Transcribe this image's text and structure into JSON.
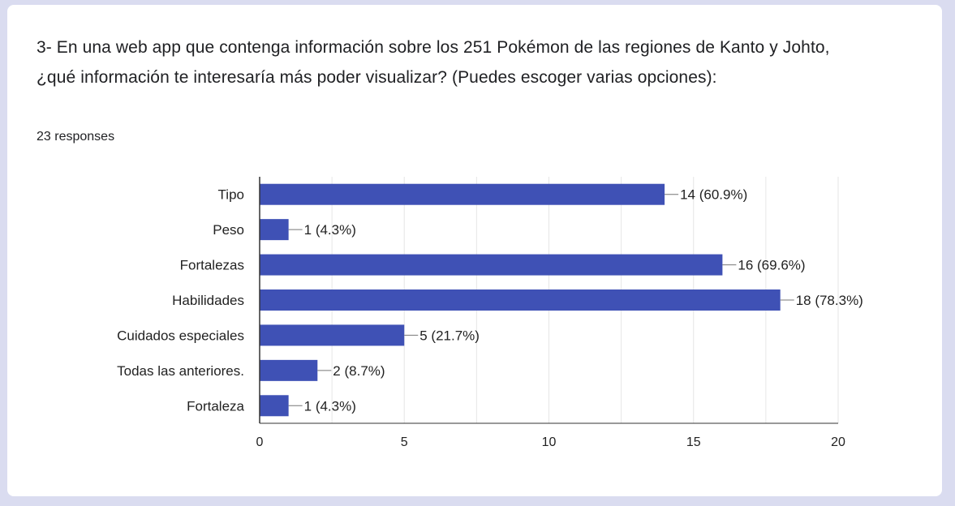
{
  "question": {
    "text": "3- En una web app que contenga información sobre los 251 Pokémon de las regiones de Kanto y Johto, ¿qué información te interesaría más poder visualizar? (Puedes escoger varias opciones):",
    "responses": "23 responses"
  },
  "colors": {
    "bar": "#3f51b5",
    "grid": "#e6e6e6",
    "axis": "#333333",
    "connector": "#777777"
  },
  "chart_data": {
    "type": "bar",
    "orientation": "horizontal",
    "categories": [
      "Tipo",
      "Peso",
      "Fortalezas",
      "Habilidades",
      "Cuidados especiales",
      "Todas las anteriores.",
      "Fortaleza"
    ],
    "values": [
      14,
      1,
      16,
      18,
      5,
      2,
      1
    ],
    "data_labels": [
      "14 (60.9%)",
      "1 (4.3%)",
      "16 (69.6%)",
      "18 (78.3%)",
      "5 (21.7%)",
      "2 (8.7%)",
      "1 (4.3%)"
    ],
    "xlim": [
      0,
      20
    ],
    "xticks": [
      "0",
      "5",
      "10",
      "15",
      "20"
    ],
    "grid": true
  }
}
